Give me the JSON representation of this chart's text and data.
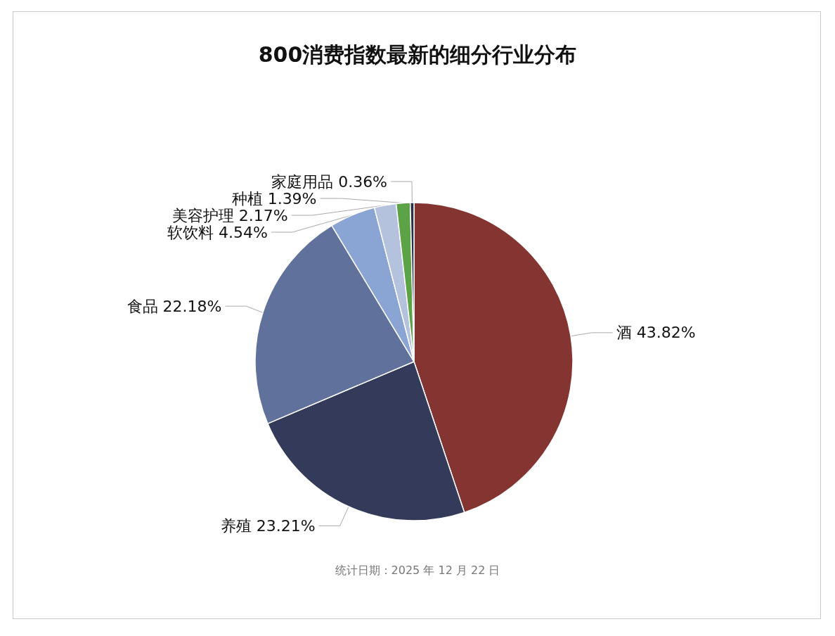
{
  "chart_data": {
    "type": "pie",
    "title": "800消费指数最新的细分行业分布",
    "categories": [
      "酒",
      "养殖",
      "食品",
      "软饮料",
      "美容护理",
      "种植",
      "家庭用品"
    ],
    "values": [
      43.82,
      23.21,
      22.18,
      4.54,
      2.17,
      1.39,
      0.36
    ],
    "value_labels": [
      "43.82%",
      "23.21%",
      "22.18%",
      "4.54%",
      "2.17%",
      "1.39%",
      "0.36%"
    ],
    "colors": [
      "#843431",
      "#343a5a",
      "#60719c",
      "#8aa4d4",
      "#b4c2de",
      "#5ca347",
      "#2a2f45"
    ],
    "legend": false,
    "annotations": [
      "统计日期：2025 年 12 月 22 日"
    ]
  }
}
